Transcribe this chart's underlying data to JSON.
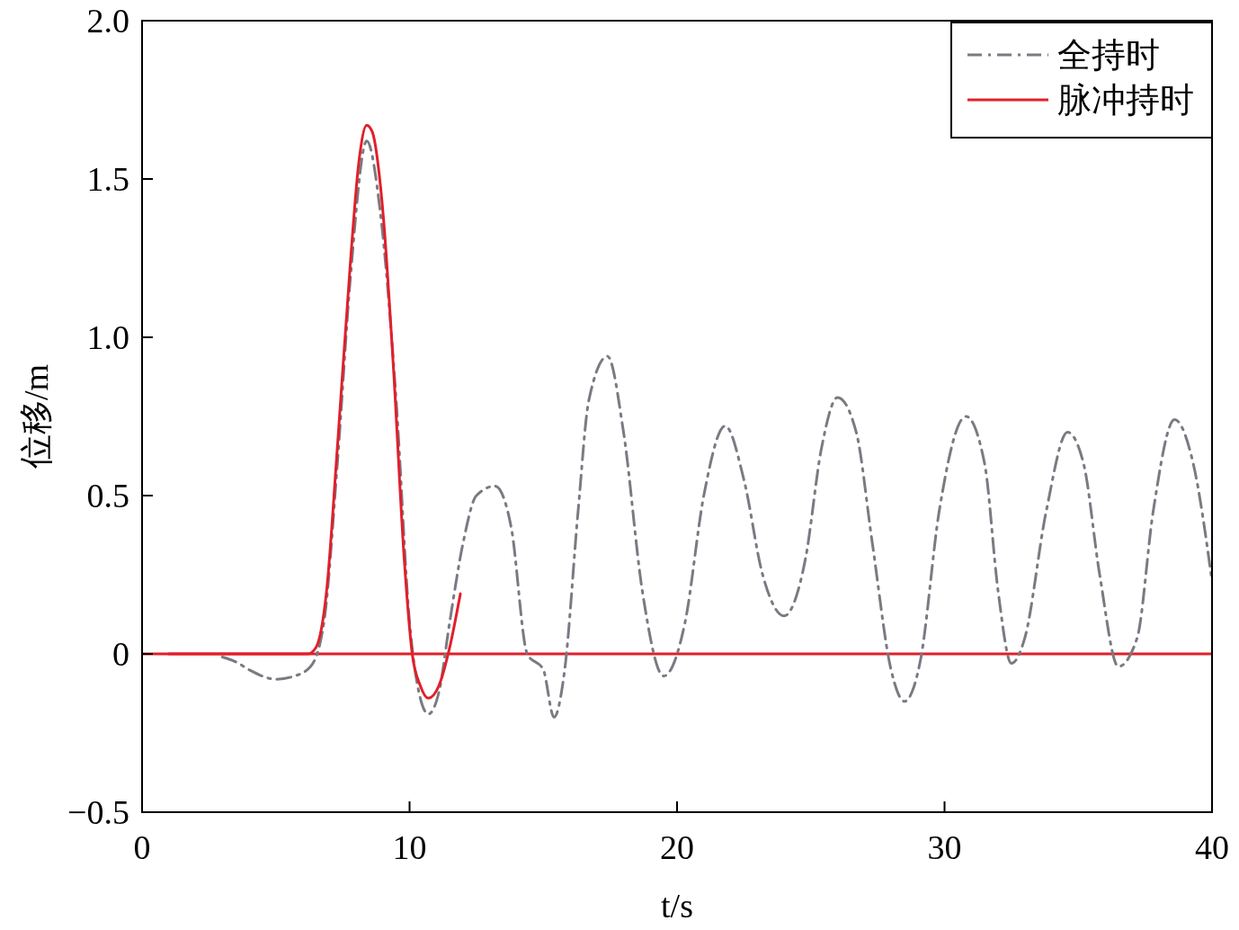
{
  "chart_data": {
    "type": "line",
    "xlabel": "t/s",
    "ylabel": "位移/m",
    "xlim": [
      0,
      40
    ],
    "ylim": [
      -0.5,
      2.0
    ],
    "xticks": [
      0,
      10,
      20,
      30,
      40
    ],
    "yticks": [
      {
        "value": -0.5,
        "label": "−0.5"
      },
      0,
      0.5,
      {
        "value": 1,
        "label": "1.0"
      },
      1.5,
      {
        "value": 2,
        "label": "2.0"
      }
    ],
    "legend": "top right",
    "grid": false,
    "ref_lines": [
      {
        "axis": "y",
        "value": 0,
        "color": "#e0202a"
      }
    ],
    "series": [
      {
        "name": "全持时",
        "color": "#7a7a82",
        "line_style": "dashed",
        "x": [
          3,
          3.5,
          4,
          5,
          5.7,
          6.3,
          6.8,
          7.3,
          7.8,
          8.4,
          8.9,
          9.5,
          10,
          10.3,
          10.7,
          11.1,
          11.5,
          12,
          12.5,
          13.2,
          13.8,
          14.4,
          15,
          15.4,
          15.8,
          16.3,
          16.7,
          17.4,
          18,
          18.7,
          19.5,
          20.3,
          21,
          21.8,
          22.5,
          23.2,
          24,
          24.8,
          25.4,
          26,
          26.7,
          27.3,
          28,
          28.5,
          29.1,
          29.8,
          30.8,
          31.5,
          32,
          32.5,
          33,
          33.8,
          34.6,
          35.2,
          35.8,
          36.5,
          37.2,
          37.8,
          38.6,
          39.3,
          40
        ],
        "values": [
          -0.01,
          -0.025,
          -0.05,
          -0.08,
          -0.07,
          -0.04,
          0.1,
          0.6,
          1.2,
          1.62,
          1.4,
          0.8,
          0.1,
          -0.1,
          -0.19,
          -0.12,
          0.1,
          0.35,
          0.5,
          0.53,
          0.4,
          0,
          -0.05,
          -0.2,
          -0.05,
          0.45,
          0.8,
          0.94,
          0.7,
          0.2,
          -0.07,
          0.1,
          0.5,
          0.72,
          0.55,
          0.25,
          0.12,
          0.3,
          0.65,
          0.81,
          0.7,
          0.35,
          -0.05,
          -0.15,
          -0.02,
          0.45,
          0.75,
          0.6,
          0.2,
          -0.03,
          0.05,
          0.45,
          0.7,
          0.6,
          0.25,
          -0.04,
          0.05,
          0.45,
          0.74,
          0.6,
          0.23
        ]
      },
      {
        "name": "脉冲持时",
        "color": "#e0202a",
        "line_style": "solid",
        "x": [
          1,
          3,
          5,
          6.2,
          6.5,
          6.9,
          7.3,
          7.8,
          8.1,
          8.4,
          8.6,
          9,
          9.4,
          9.8,
          10.1,
          10.4,
          10.7,
          11.1,
          11.5,
          11.9
        ],
        "values": [
          0,
          0,
          0,
          0,
          0.02,
          0.2,
          0.65,
          1.25,
          1.55,
          1.67,
          1.65,
          1.4,
          0.9,
          0.3,
          0,
          -0.1,
          -0.14,
          -0.1,
          0.02,
          0.19
        ]
      }
    ]
  }
}
